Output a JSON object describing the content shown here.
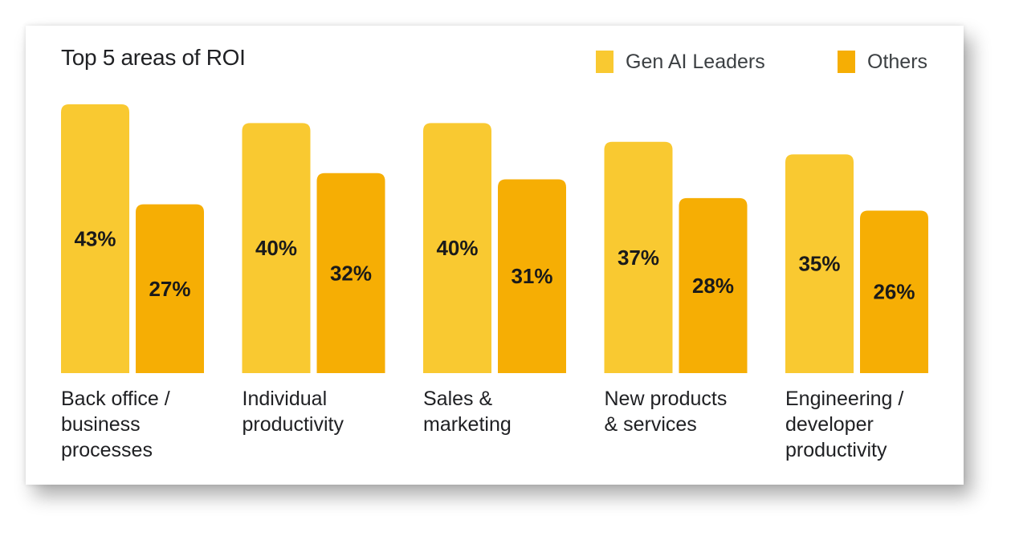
{
  "title": "Top 5 areas of ROI",
  "legend": [
    {
      "label": "Gen AI Leaders",
      "color": "#F9C931"
    },
    {
      "label": "Others",
      "color": "#F6AE04"
    }
  ],
  "chart_data": {
    "type": "bar",
    "title": "Top 5 areas of ROI",
    "categories": [
      [
        "Back office /",
        "business",
        "processes"
      ],
      [
        "Individual",
        "productivity"
      ],
      [
        "Sales &",
        "marketing"
      ],
      [
        "New products",
        "& services"
      ],
      [
        "Engineering /",
        "developer",
        "productivity"
      ]
    ],
    "series": [
      {
        "name": "Gen AI Leaders",
        "color": "#F9C931",
        "values": [
          43,
          40,
          40,
          37,
          35
        ],
        "labels": [
          "43%",
          "40%",
          "40%",
          "37%",
          "35%"
        ]
      },
      {
        "name": "Others",
        "color": "#F6AE04",
        "values": [
          27,
          32,
          31,
          28,
          26
        ],
        "labels": [
          "27%",
          "32%",
          "31%",
          "28%",
          "26%"
        ]
      }
    ],
    "ylim": [
      0,
      43
    ],
    "grid": false,
    "legend_position": "top-right"
  }
}
